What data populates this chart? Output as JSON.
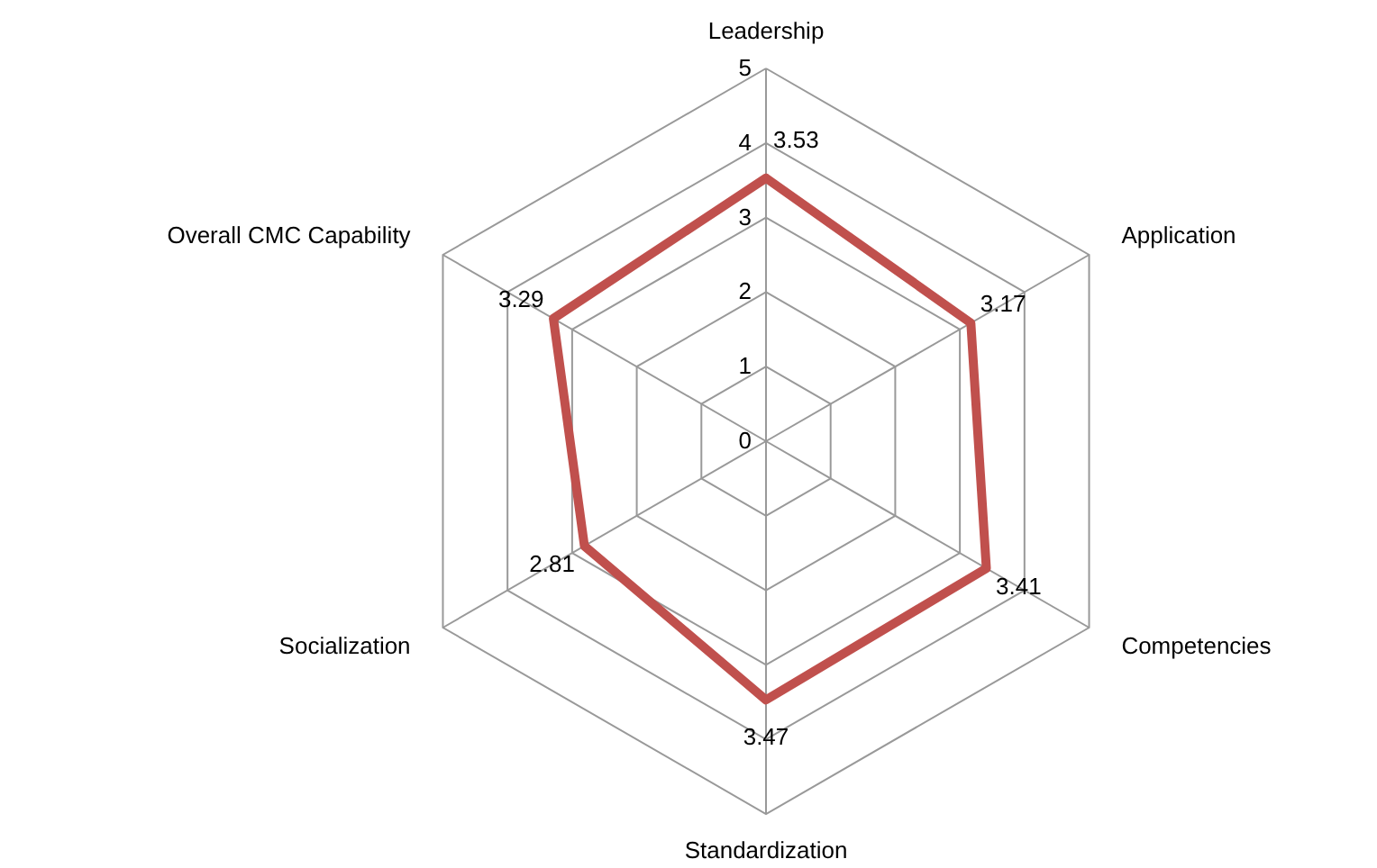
{
  "chart_data": {
    "type": "radar",
    "categories": [
      "Leadership",
      "Application",
      "Competencies",
      "Standardization",
      "Socialization",
      "Overall CMC Capability"
    ],
    "series": [
      {
        "color": "#c0504d",
        "values": [
          3.53,
          3.17,
          3.41,
          3.47,
          2.81,
          3.29
        ]
      }
    ],
    "ylim": [
      0,
      5
    ],
    "yticks": [
      0,
      1,
      2,
      3,
      4,
      5
    ],
    "grid": true,
    "data_labels": true,
    "marker": "none"
  }
}
